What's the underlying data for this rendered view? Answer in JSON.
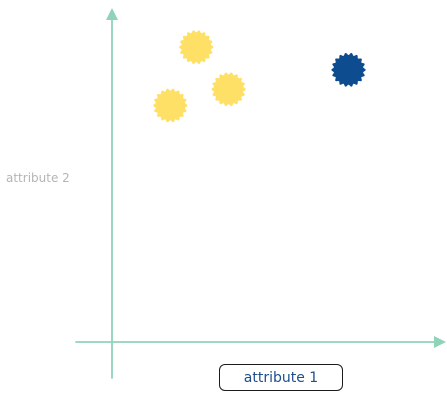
{
  "chart_data": {
    "type": "scatter",
    "xlabel": "attribute 1",
    "ylabel": "attribute 2",
    "grid": false,
    "axis_ticks": false,
    "xlim": [
      0,
      100
    ],
    "ylim": [
      0,
      100
    ],
    "points": [
      {
        "x": 26,
        "y": 91,
        "color": "#ffe066"
      },
      {
        "x": 36,
        "y": 78,
        "color": "#ffe066"
      },
      {
        "x": 18,
        "y": 73,
        "color": "#ffe066"
      },
      {
        "x": 73,
        "y": 84,
        "color": "#0d4d8f"
      }
    ],
    "colors": {
      "axis": "#8fd3b9",
      "highlight": "#0d4d8f",
      "normal": "#ffe066"
    }
  }
}
